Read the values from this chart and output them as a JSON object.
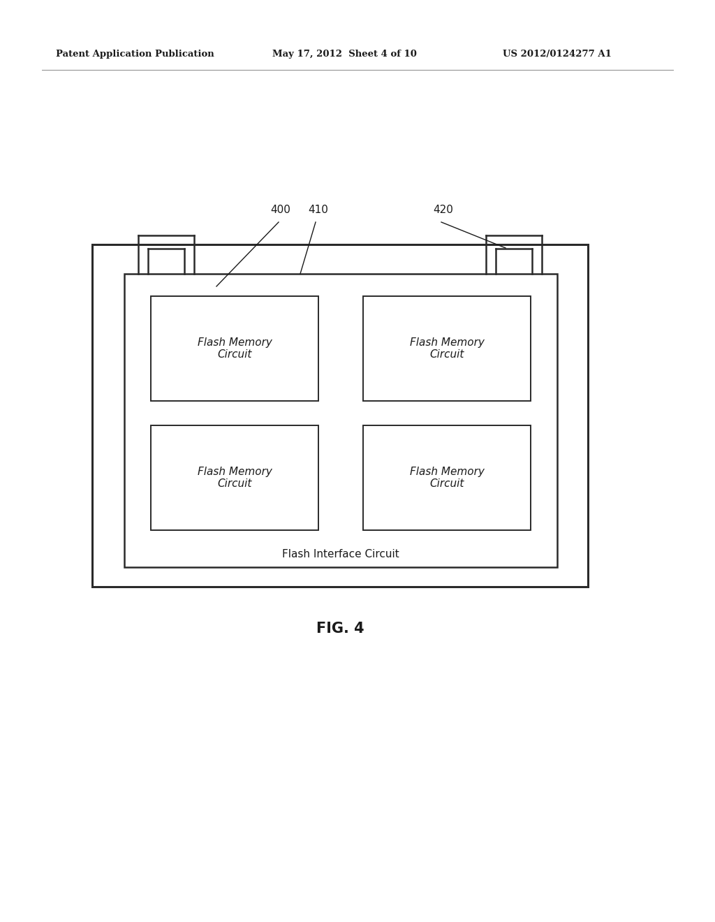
{
  "title_left": "Patent Application Publication",
  "title_mid": "May 17, 2012  Sheet 4 of 10",
  "title_right": "US 2012/0124277 A1",
  "fig_label": "FIG. 4",
  "label_400": "400",
  "label_410": "410",
  "label_420": "420",
  "flash_memory_text": "Flash Memory\nCircuit",
  "flash_interface_text": "Flash Interface Circuit",
  "bg_color": "#ffffff",
  "box_edge_color": "#2a2a2a",
  "text_color": "#1a1a1a",
  "header_fontsize": 9.5,
  "label_fontsize": 11,
  "cell_fontsize": 11,
  "fig_label_fontsize": 15
}
